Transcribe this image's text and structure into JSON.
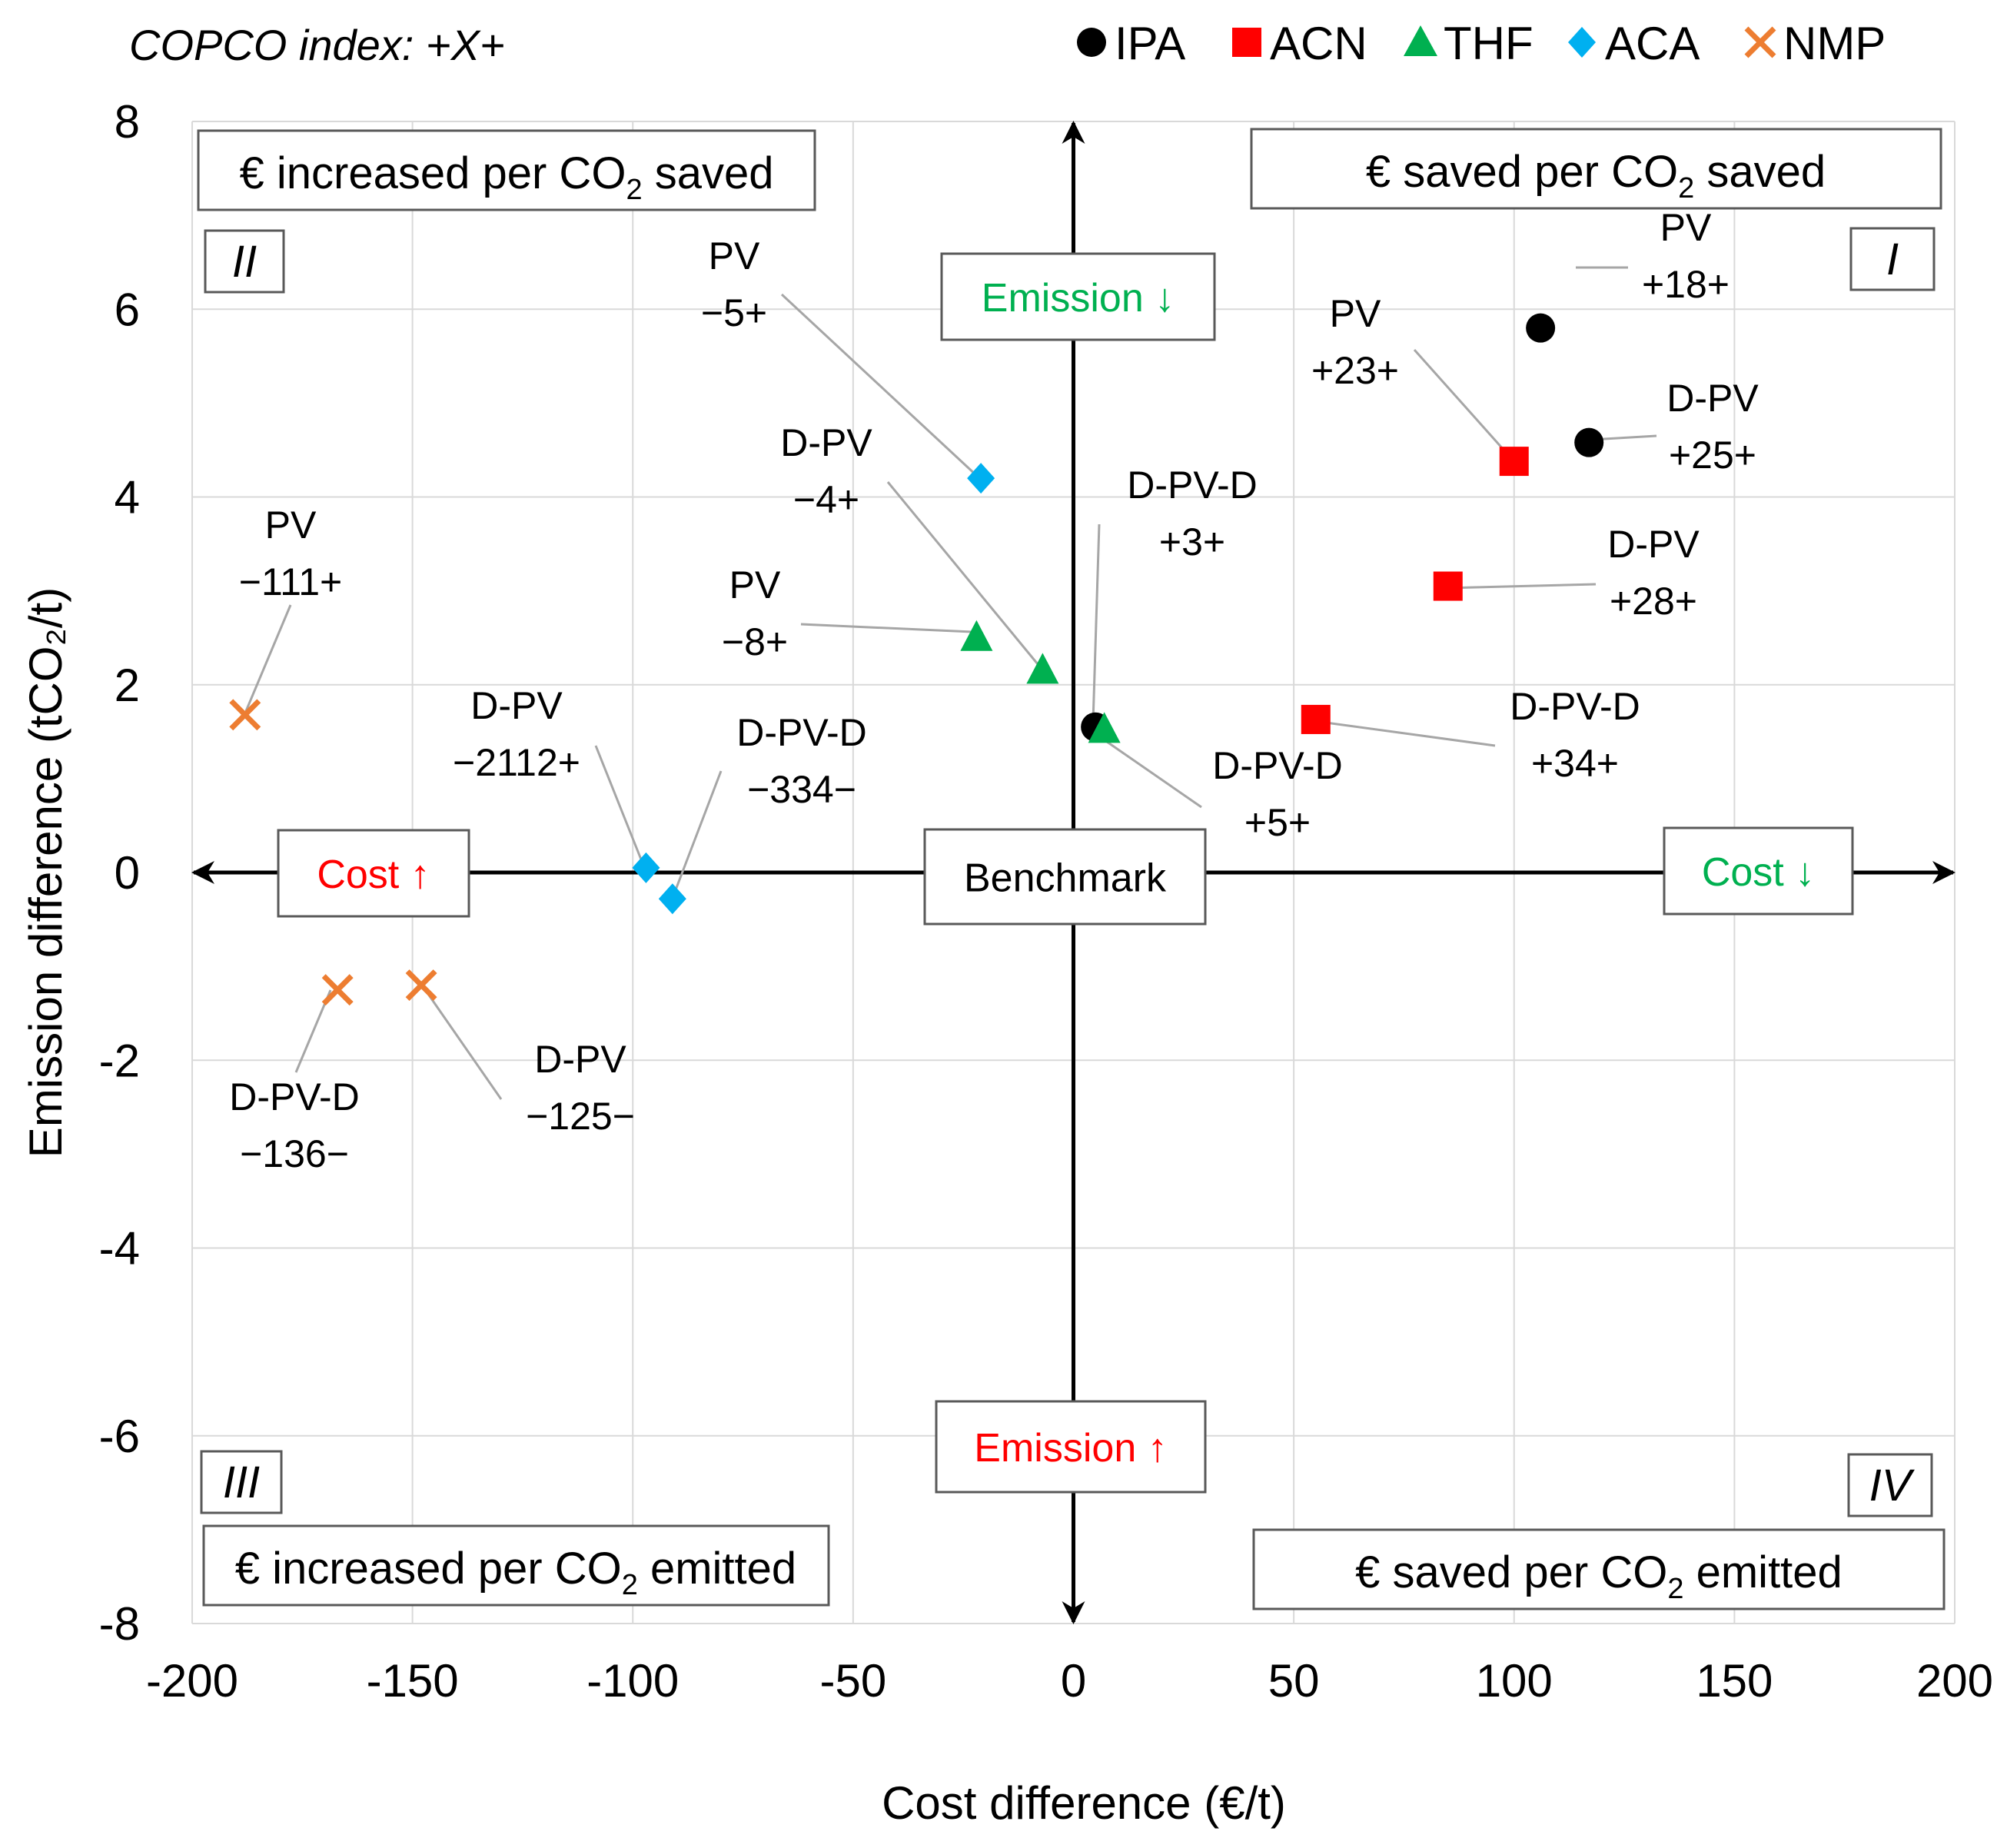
{
  "chart_data": {
    "type": "scatter",
    "title": "",
    "index_note": "COPCO index: +X+",
    "xlabel": "Cost difference (€/t)",
    "ylabel": "Emission difference (tCO₂/t)",
    "xlim": [
      -200,
      200
    ],
    "ylim": [
      -8,
      8
    ],
    "x_ticks": [
      -200,
      -150,
      -100,
      -50,
      0,
      50,
      100,
      150,
      200
    ],
    "y_ticks": [
      -8,
      -6,
      -4,
      -2,
      0,
      2,
      4,
      6,
      8
    ],
    "x_tick_labels": [
      "-200",
      "-150",
      "-100",
      "-50",
      "0",
      "50",
      "100",
      "150",
      "200"
    ],
    "y_tick_labels": [
      "-8",
      "-6",
      "-4",
      "-2",
      "0",
      "2",
      "4",
      "6",
      "8"
    ],
    "grid": true,
    "legend_position": "top",
    "series": [
      {
        "name": "IPA",
        "marker": "circle",
        "color": "#000000",
        "points": [
          {
            "x": 106,
            "y": 5.8,
            "label": "PV",
            "index": "+18+"
          },
          {
            "x": 117,
            "y": 4.58,
            "label": "D-PV",
            "index": "+25+"
          },
          {
            "x": 5,
            "y": 1.55,
            "label": "D-PV-D",
            "index": "+3+"
          }
        ]
      },
      {
        "name": "ACN",
        "marker": "square",
        "color": "#ff0000",
        "points": [
          {
            "x": 100,
            "y": 4.38,
            "label": "PV",
            "index": "+23+"
          },
          {
            "x": 85,
            "y": 3.05,
            "label": "D-PV",
            "index": "+28+"
          },
          {
            "x": 55,
            "y": 1.63,
            "label": "D-PV-D",
            "index": "+34+"
          }
        ]
      },
      {
        "name": "THF",
        "marker": "triangle",
        "color": "#00b050",
        "points": [
          {
            "x": -22,
            "y": 2.5,
            "label": "PV",
            "index": "−8+"
          },
          {
            "x": -7,
            "y": 2.15,
            "label": "D-PV",
            "index": "−4+"
          },
          {
            "x": 7,
            "y": 1.52,
            "label": "D-PV-D",
            "index": "+5+"
          }
        ]
      },
      {
        "name": "ACA",
        "marker": "diamond",
        "color": "#00b0f0",
        "points": [
          {
            "x": -21,
            "y": 4.2,
            "label": "PV",
            "index": "−5+"
          },
          {
            "x": -97,
            "y": 0.05,
            "label": "D-PV",
            "index": "−2112+"
          },
          {
            "x": -91,
            "y": -0.28,
            "label": "D-PV-D",
            "index": "−334−"
          }
        ]
      },
      {
        "name": "NMP",
        "marker": "x",
        "color": "#ed7d31",
        "points": [
          {
            "x": -188,
            "y": 1.68,
            "label": "PV",
            "index": "−111+"
          },
          {
            "x": -148,
            "y": -1.2,
            "label": "D-PV",
            "index": "−125−"
          },
          {
            "x": -167,
            "y": -1.25,
            "label": "D-PV-D",
            "index": "−136−"
          }
        ]
      }
    ],
    "quadrants": {
      "I": {
        "numeral": "I",
        "caption_a": "€ saved per CO",
        "caption_sub": "2",
        "caption_b": " saved"
      },
      "II": {
        "numeral": "II",
        "caption_a": "€ increased per CO",
        "caption_sub": "2",
        "caption_b": " saved"
      },
      "III": {
        "numeral": "III",
        "caption_a": "€ increased per CO",
        "caption_sub": "2",
        "caption_b": " emitted"
      },
      "IV": {
        "numeral": "IV",
        "caption_a": "€ saved per CO",
        "caption_sub": "2",
        "caption_b": " emitted"
      }
    },
    "direction_boxes": {
      "emission_down": "Emission ↓",
      "emission_up": "Emission ↑",
      "cost_up": "Cost ↑",
      "cost_down": "Cost ↓",
      "benchmark": "Benchmark"
    },
    "colors": {
      "positive": "#00b050",
      "negative": "#ff0000",
      "grid": "#d9d9d9",
      "leader": "#a6a6a6"
    }
  }
}
